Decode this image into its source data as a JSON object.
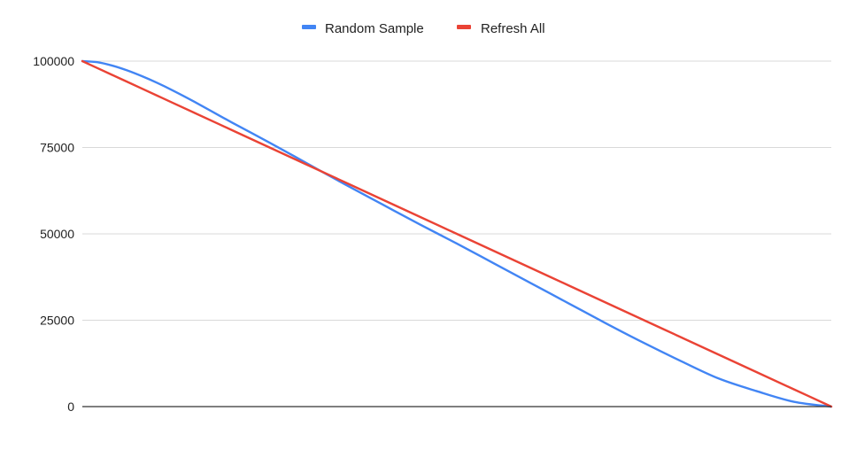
{
  "chart_data": {
    "type": "line",
    "title": "",
    "xlabel": "",
    "ylabel": "",
    "x": [
      0,
      0.02,
      0.04,
      0.06,
      0.08,
      0.1,
      0.12,
      0.15,
      0.2,
      0.25,
      0.3,
      0.35,
      0.4,
      0.45,
      0.5,
      0.55,
      0.6,
      0.65,
      0.7,
      0.75,
      0.8,
      0.85,
      0.9,
      0.95,
      1.0
    ],
    "xlim": [
      0,
      1
    ],
    "ylim": [
      0,
      100000
    ],
    "y_ticks": [
      0,
      25000,
      50000,
      75000,
      100000
    ],
    "y_tick_labels": [
      "0",
      "25000",
      "50000",
      "75000",
      "100000"
    ],
    "grid": true,
    "legend_position": "top",
    "series": [
      {
        "name": "Random Sample",
        "color": "#4285F4",
        "values": [
          100000,
          99700,
          98700,
          97300,
          95600,
          93700,
          91600,
          88200,
          82200,
          76400,
          70400,
          64400,
          58600,
          52800,
          47200,
          41400,
          35600,
          29800,
          24000,
          18400,
          13100,
          8100,
          4500,
          1400,
          0
        ]
      },
      {
        "name": "Refresh All",
        "color": "#EA4335",
        "values": [
          100000,
          98000,
          96000,
          94000,
          92000,
          90000,
          88000,
          85000,
          80000,
          75000,
          70000,
          65000,
          60000,
          55000,
          50000,
          45000,
          40000,
          35000,
          30000,
          25000,
          20000,
          15000,
          10000,
          5000,
          0
        ]
      }
    ]
  }
}
